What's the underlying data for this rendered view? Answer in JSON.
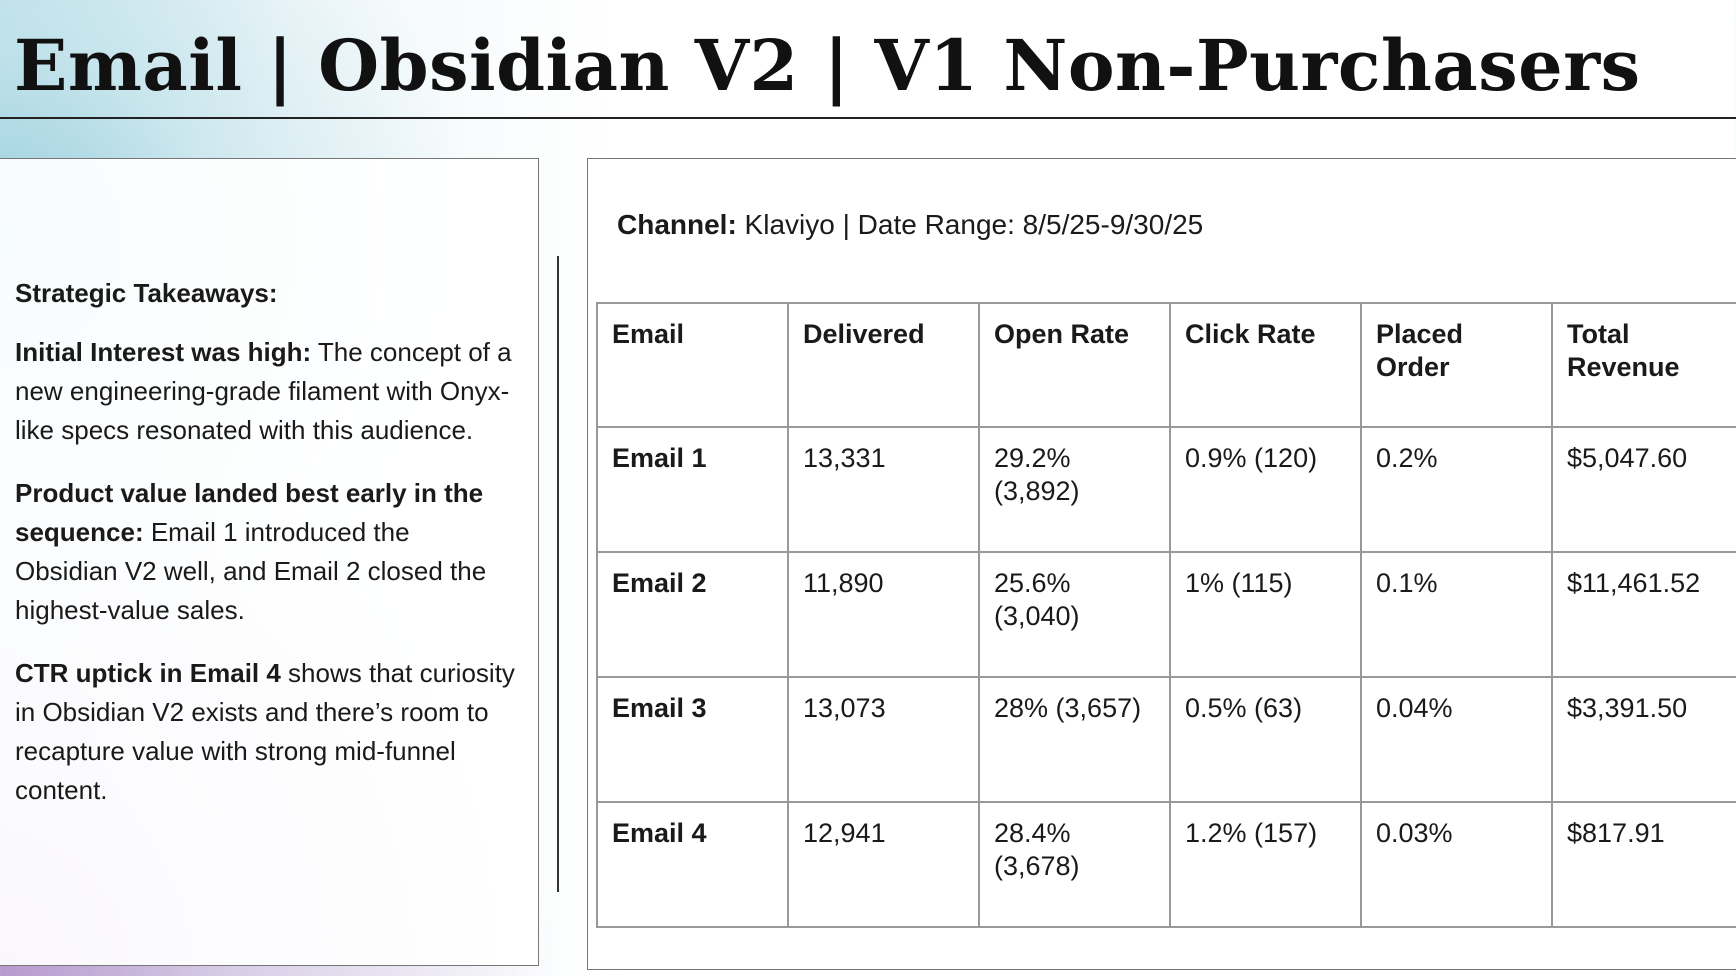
{
  "page": {
    "title": "Email | Obsidian V2 | V1 Non-Purchasers"
  },
  "takeaways": {
    "heading": "Strategic Takeaways:",
    "items": [
      {
        "bold": "Initial Interest was high:",
        "text": " The concept of a new engineering-grade filament with Onyx-like specs resonated with this audience."
      },
      {
        "bold": "Product value landed best early in the sequence:",
        "text": " Email 1 introduced the Obsidian V2 well, and Email 2 closed the highest-value sales."
      },
      {
        "bold": "CTR uptick in Email 4",
        "text": " shows that curiosity in Obsidian V2 exists and there’s room to recapture value with strong mid-funnel content."
      }
    ]
  },
  "summary": {
    "channel_label": "Channel:",
    "channel_value": " Klaviyo | Date Range: 8/5/25-9/30/25"
  },
  "table": {
    "headers": [
      "Email",
      "Delivered",
      "Open Rate",
      "Click Rate",
      "Placed Order",
      "Total Revenue"
    ],
    "rows": [
      {
        "email": "Email 1",
        "delivered": "13,331",
        "open_rate": "29.2% (3,892)",
        "click_rate": "0.9% (120)",
        "placed_order": "0.2%",
        "total_revenue": "$5,047.60"
      },
      {
        "email": "Email 2",
        "delivered": "11,890",
        "open_rate": "25.6% (3,040)",
        "click_rate": "1% (115)",
        "placed_order": "0.1%",
        "total_revenue": "$11,461.52"
      },
      {
        "email": "Email 3",
        "delivered": "13,073",
        "open_rate": "28% (3,657)",
        "click_rate": "0.5% (63)",
        "placed_order": "0.04%",
        "total_revenue": "$3,391.50"
      },
      {
        "email": "Email 4",
        "delivered": "12,941",
        "open_rate": "28.4% (3,678)",
        "click_rate": "1.2% (157)",
        "placed_order": "0.03%",
        "total_revenue": "$817.91"
      }
    ]
  }
}
